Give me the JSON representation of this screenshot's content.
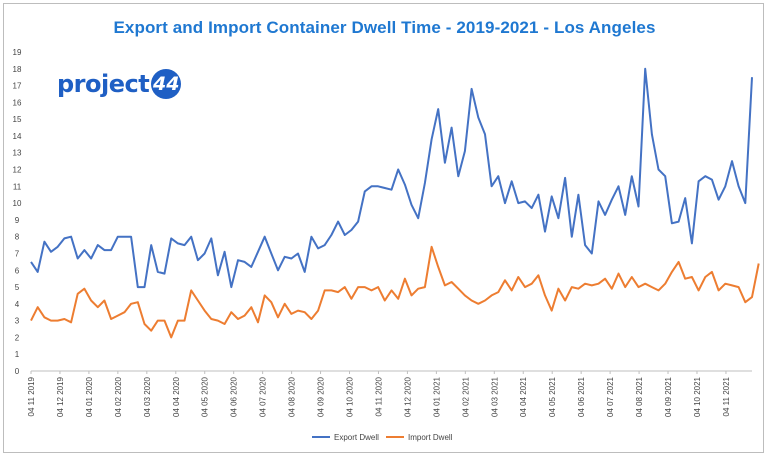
{
  "chart_data": {
    "type": "line",
    "title": "Export and Import Container Dwell Time - 2019-2021 - Los Angeles",
    "xlabel": "",
    "ylabel": "",
    "ylim": [
      0,
      19
    ],
    "y_ticks": [
      0,
      1,
      2,
      3,
      4,
      5,
      6,
      7,
      8,
      9,
      10,
      11,
      12,
      13,
      14,
      15,
      16,
      17,
      18,
      19
    ],
    "x_tick_labels": [
      "04 11 2019",
      "04 12 2019",
      "04 01 2020",
      "04 02 2020",
      "04 03 2020",
      "04 04 2020",
      "04 05 2020",
      "04 06 2020",
      "04 07 2020",
      "04 08 2020",
      "04 09 2020",
      "04 10 2020",
      "04 11 2020",
      "04 12 2020",
      "04 01 2021",
      "04 02 2021",
      "04 03 2021",
      "04 04 2021",
      "04 05 2021",
      "04 06 2021",
      "04 07 2021",
      "04 08 2021",
      "04 09 2021",
      "04 10 2021",
      "04 11 2021"
    ],
    "grid": false,
    "legend_position": "bottom",
    "series": [
      {
        "name": "Export Dwell",
        "color": "#4472c4",
        "values": [
          6.5,
          5.9,
          7.7,
          7.1,
          7.4,
          7.9,
          8.0,
          6.7,
          7.2,
          6.7,
          7.5,
          7.2,
          7.2,
          8.0,
          8.0,
          8.0,
          5.0,
          5.0,
          7.5,
          5.9,
          5.8,
          7.9,
          7.6,
          7.5,
          8.0,
          6.6,
          7.0,
          7.9,
          5.7,
          7.1,
          5.0,
          6.6,
          6.5,
          6.2,
          7.1,
          8.0,
          7.0,
          6.0,
          6.8,
          6.7,
          7.0,
          5.9,
          8.0,
          7.3,
          7.5,
          8.1,
          8.9,
          8.1,
          8.4,
          8.9,
          10.7,
          11.0,
          11.0,
          10.9,
          10.8,
          12.0,
          11.1,
          9.9,
          9.1,
          11.2,
          13.8,
          15.6,
          12.4,
          14.5,
          11.6,
          13.1,
          16.8,
          15.1,
          14.1,
          11.0,
          11.6,
          10.0,
          11.3,
          10.0,
          10.1,
          9.7,
          10.5,
          8.3,
          10.4,
          9.1,
          11.5,
          8.0,
          10.5,
          7.5,
          7.0,
          10.1,
          9.3,
          10.2,
          11.0,
          9.3,
          11.6,
          9.8,
          18.0,
          14.1,
          12.0,
          11.6,
          8.8,
          8.9,
          10.3,
          7.6,
          11.3,
          11.6,
          11.4,
          10.2,
          11.0,
          12.5,
          11.0,
          10.0,
          17.5
        ]
      },
      {
        "name": "Import Dwell",
        "color": "#ed7d31",
        "values": [
          3.0,
          3.8,
          3.2,
          3.0,
          3.0,
          3.1,
          2.9,
          4.6,
          4.9,
          4.2,
          3.8,
          4.2,
          3.1,
          3.3,
          3.5,
          4.0,
          4.1,
          2.8,
          2.4,
          3.0,
          3.0,
          2.0,
          3.0,
          3.0,
          4.8,
          4.2,
          3.6,
          3.1,
          3.0,
          2.8,
          3.5,
          3.1,
          3.3,
          3.8,
          2.9,
          4.5,
          4.1,
          3.2,
          4.0,
          3.4,
          3.6,
          3.5,
          3.1,
          3.6,
          4.8,
          4.8,
          4.7,
          5.0,
          4.3,
          5.0,
          5.0,
          4.8,
          5.0,
          4.2,
          4.8,
          4.3,
          5.5,
          4.5,
          4.9,
          5.0,
          7.4,
          6.2,
          5.1,
          5.3,
          4.9,
          4.5,
          4.2,
          4.0,
          4.2,
          4.5,
          4.7,
          5.4,
          4.8,
          5.6,
          5.0,
          5.2,
          5.7,
          4.5,
          3.6,
          4.9,
          4.2,
          5.0,
          4.9,
          5.2,
          5.1,
          5.2,
          5.5,
          4.9,
          5.8,
          5.0,
          5.6,
          5.0,
          5.2,
          5.0,
          4.8,
          5.2,
          5.9,
          6.5,
          5.5,
          5.6,
          4.8,
          5.6,
          5.9,
          4.8,
          5.2,
          5.1,
          5.0,
          4.1,
          4.4,
          6.4
        ]
      }
    ]
  }
}
